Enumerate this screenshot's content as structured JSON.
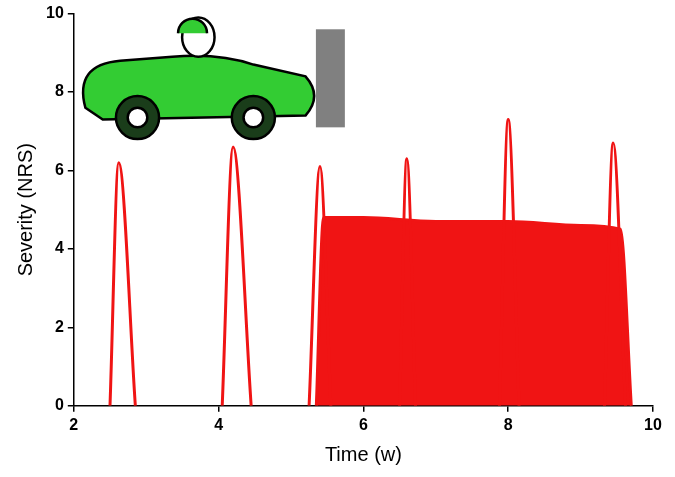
{
  "chart_data": {
    "type": "line",
    "x_label": "Time (w)",
    "y_label": "Severity (NRS)",
    "xlim": [
      2,
      10
    ],
    "xticks": [
      2,
      4,
      6,
      8,
      10
    ],
    "ylim": [
      0,
      10
    ],
    "yticks": [
      0,
      2,
      4,
      6,
      8,
      10
    ],
    "grid": false,
    "series": [
      {
        "color": "#f01414",
        "x": [
          2.5,
          2.62,
          2.85
        ],
        "values": [
          0,
          6.2,
          0
        ]
      },
      {
        "color": "#f01414",
        "x": [
          4.05,
          4.2,
          4.45
        ],
        "values": [
          0,
          6.6,
          0
        ]
      },
      {
        "color": "#f01414",
        "x": [
          5.25,
          5.4,
          5.55
        ],
        "values": [
          0,
          6.1,
          0
        ]
      },
      {
        "color": "#f01414",
        "x": [
          6.5,
          6.6,
          6.72
        ],
        "values": [
          0,
          6.3,
          0
        ]
      },
      {
        "color": "#f01414",
        "x": [
          7.88,
          8.0,
          8.15
        ],
        "values": [
          0,
          7.3,
          0
        ]
      },
      {
        "color": "#f01414",
        "x": [
          9.33,
          9.45,
          9.62
        ],
        "values": [
          0,
          6.7,
          0
        ]
      },
      {
        "type": "area",
        "color": "#f01414",
        "x": [
          5.35,
          5.45,
          6.0,
          7.0,
          8.0,
          9.0,
          9.55,
          9.7
        ],
        "values": [
          0,
          4.8,
          4.8,
          4.7,
          4.7,
          4.6,
          4.5,
          0
        ]
      }
    ]
  }
}
